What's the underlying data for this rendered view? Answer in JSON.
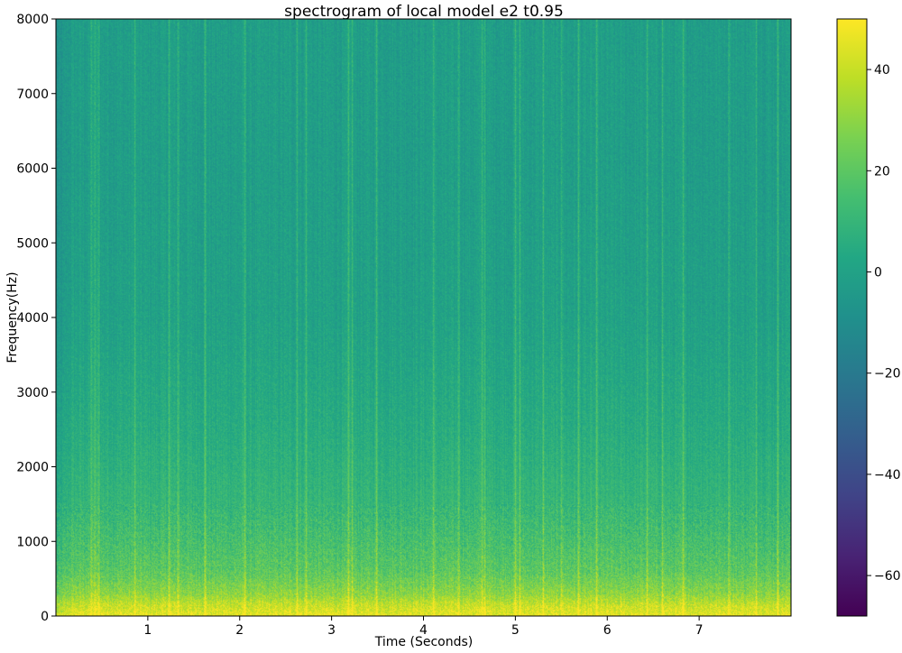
{
  "chart_data": {
    "type": "heatmap",
    "title": "spectrogram of local model e2 t0.95",
    "xlabel": "Time (Seconds)",
    "ylabel": "Frequency(Hz)",
    "xlim": [
      0,
      8.0
    ],
    "ylim": [
      0,
      8000
    ],
    "x_ticks": [
      1,
      2,
      3,
      4,
      5,
      6,
      7
    ],
    "y_ticks": [
      0,
      1000,
      2000,
      3000,
      4000,
      5000,
      6000,
      7000,
      8000
    ],
    "colorbar": {
      "colormap": "viridis",
      "range": [
        -68,
        50
      ],
      "ticks": [
        -60,
        -40,
        -20,
        0,
        20,
        40
      ]
    },
    "bright_time_lines": [
      0.38,
      0.42,
      0.46,
      0.85,
      1.23,
      1.33,
      1.62,
      2.05,
      2.62,
      2.72,
      3.18,
      3.22,
      3.48,
      4.1,
      4.38,
      4.63,
      4.66,
      5.0,
      5.05,
      5.3,
      5.5,
      5.68,
      5.88,
      6.43,
      6.6,
      6.82,
      7.32,
      7.62,
      7.85
    ],
    "level_profile_by_frequency": [
      {
        "frequency": 0,
        "level": 46
      },
      {
        "frequency": 150,
        "level": 40
      },
      {
        "frequency": 300,
        "level": 30
      },
      {
        "frequency": 600,
        "level": 20
      },
      {
        "frequency": 1000,
        "level": 15
      },
      {
        "frequency": 1500,
        "level": 10
      },
      {
        "frequency": 2500,
        "level": 5
      },
      {
        "frequency": 4000,
        "level": 0
      },
      {
        "frequency": 6000,
        "level": -2
      },
      {
        "frequency": 8000,
        "level": -2
      }
    ]
  }
}
